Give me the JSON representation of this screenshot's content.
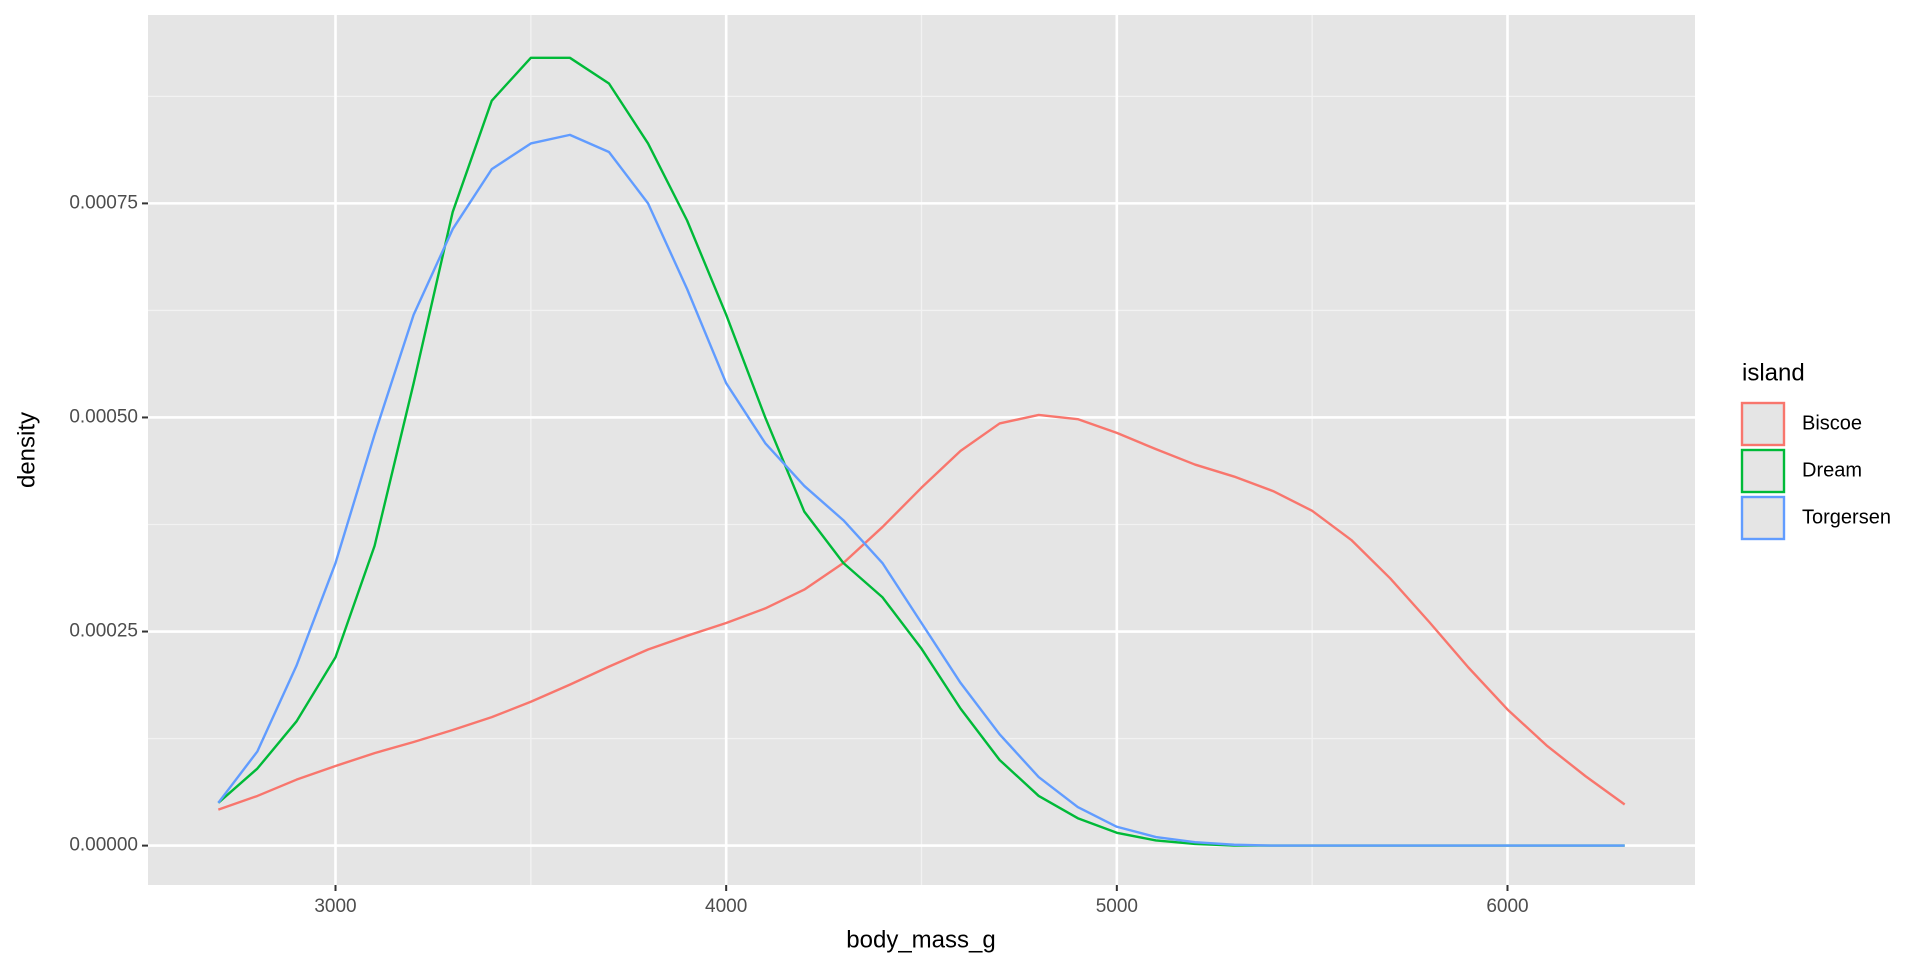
{
  "chart_data": {
    "type": "line",
    "x_label": "body_mass_g",
    "y_label": "density",
    "legend_title": "island",
    "legend_position": "right",
    "x": [
      2700,
      2800,
      2900,
      3000,
      3100,
      3200,
      3300,
      3400,
      3500,
      3600,
      3700,
      3800,
      3900,
      4000,
      4100,
      4200,
      4300,
      4400,
      4500,
      4600,
      4700,
      4800,
      4900,
      5000,
      5100,
      5200,
      5300,
      5400,
      5500,
      5600,
      5700,
      5800,
      5900,
      6000,
      6100,
      6200,
      6300
    ],
    "series": [
      {
        "name": "Biscoe",
        "color": "#F8766D",
        "values": [
          4.2e-05,
          5.8e-05,
          7.7e-05,
          9.3e-05,
          0.000108,
          0.000121,
          0.000135,
          0.00015,
          0.000168,
          0.000188,
          0.000209,
          0.000229,
          0.000245,
          0.00026,
          0.000277,
          0.000299,
          0.00033,
          0.000372,
          0.000418,
          0.000461,
          0.000493,
          0.000503,
          0.000498,
          0.000482,
          0.000463,
          0.000445,
          0.000431,
          0.000414,
          0.000391,
          0.000357,
          0.000312,
          0.000261,
          0.000208,
          0.000159,
          0.000117,
          8.1e-05,
          4.8e-05
        ]
      },
      {
        "name": "Dream",
        "color": "#00BA38",
        "values": [
          5e-05,
          9e-05,
          0.000145,
          0.00022,
          0.00035,
          0.00054,
          0.00074,
          0.00087,
          0.00092,
          0.00092,
          0.00089,
          0.00082,
          0.00073,
          0.00062,
          0.0005,
          0.00039,
          0.00033,
          0.00029,
          0.00023,
          0.00016,
          0.0001,
          5.8e-05,
          3.2e-05,
          1.5e-05,
          6e-06,
          2e-06,
          0,
          0,
          0,
          0,
          0,
          0,
          0,
          0,
          0,
          0,
          0
        ]
      },
      {
        "name": "Torgersen",
        "color": "#619CFF",
        "values": [
          5e-05,
          0.00011,
          0.00021,
          0.00033,
          0.00048,
          0.00062,
          0.00072,
          0.00079,
          0.00082,
          0.00083,
          0.00081,
          0.00075,
          0.00065,
          0.00054,
          0.00047,
          0.00042,
          0.00038,
          0.00033,
          0.00026,
          0.00019,
          0.00013,
          8e-05,
          4.5e-05,
          2.2e-05,
          1e-05,
          4e-06,
          1e-06,
          0,
          0,
          0,
          0,
          0,
          0,
          0,
          0,
          0,
          0
        ]
      }
    ],
    "xlim": [
      2520,
      6480
    ],
    "xticks": [
      3000,
      4000,
      5000,
      6000
    ],
    "ylim": [
      -4.6e-05,
      0.00097
    ],
    "yticks": [
      {
        "value": 0,
        "label": "0.00000"
      },
      {
        "value": 0.00025,
        "label": "0.00025"
      },
      {
        "value": 0.0005,
        "label": "0.00050"
      },
      {
        "value": 0.00075,
        "label": "0.00075"
      }
    ],
    "grid": true
  }
}
